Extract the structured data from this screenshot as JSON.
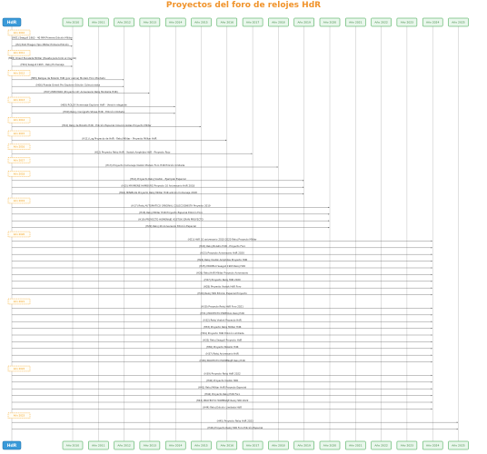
{
  "title": "Proyectos del foro de relojes HdR",
  "actor": {
    "label": "HdR"
  },
  "participants": [
    {
      "label": "Año 2010"
    },
    {
      "label": "Año 2011"
    },
    {
      "label": "Año 2012"
    },
    {
      "label": "Año 2013"
    },
    {
      "label": "Año 2014"
    },
    {
      "label": "Año 2015"
    },
    {
      "label": "Año 2016"
    },
    {
      "label": "Año 2017"
    },
    {
      "label": "Año 2018"
    },
    {
      "label": "Año 2019"
    },
    {
      "label": "Año 2020"
    },
    {
      "label": "Año 2021"
    },
    {
      "label": "Año 2022"
    },
    {
      "label": "Año 2023"
    },
    {
      "label": "Año 2024"
    },
    {
      "label": "Año 2025"
    }
  ],
  "colors": {
    "title": "#f0932b",
    "actor_fill": "#3a9ad9",
    "participant_border": "#2e9e3e",
    "participant_fill": "#e9f7ec",
    "lifeline": "#b0b0b0",
    "note": "#f39c12",
    "arrow": "#555555"
  },
  "groups": [
    {
      "note": "Año 2010",
      "messages": [
        {
          "to": 0,
          "text": "(H01) Seagull 1963 - 40 MM Primera Edición Militar"
        },
        {
          "to": 0,
          "text": "(H2) Pilot Fliegen Tipo Militar Primera Edición"
        }
      ]
    },
    {
      "note": "Año 2011",
      "messages": [
        {
          "to": 0,
          "text": "(H03) Orient Escalada Militar (Puesta para todo el mundo)"
        },
        {
          "to": 0,
          "text": "(H04) Seagull 1963 - Reloj Homenaje"
        }
      ]
    },
    {
      "note": "Año 2012",
      "messages": [
        {
          "to": 2,
          "text": "(H05) Relojes de Bolsillo HdR (por varios) Modelo Foro Montado"
        },
        {
          "to": 2,
          "text": "(H06) Puesta Orient Pro Explorer Edición Coleccionista"
        },
        {
          "to": 3,
          "text": "(H07) PRE-FARO (Proyecto 10º Aniversario Reloj Montaña HdR)"
        }
      ]
    },
    {
      "note": "Año 2013",
      "messages": [
        {
          "to": 4,
          "text": "(H08) ROLEX Homenaje Explorer HdR - Versión elegante"
        },
        {
          "to": 4,
          "text": "(H09) Reloj cronógrafo Stowa HdR - Edición limitada"
        }
      ]
    },
    {
      "note": "Año 2014",
      "messages": [
        {
          "to": 5,
          "text": "(H10) Reloj de Bolsillo HdR - Edición Especial Coleccionistas Proyecto Militar"
        }
      ]
    },
    {
      "note": "Año 2015",
      "messages": [
        {
          "to": 6,
          "text": "(H11) Lug Proyecto de HdR - Reloj Militar - Proyecto Militar HdR"
        }
      ]
    },
    {
      "note": "Año 2016",
      "messages": [
        {
          "to": 7,
          "text": "(H12) Proyecto Reloj HdR - Vostok Amphibia HdR - Proyecto Rojo"
        }
      ]
    },
    {
      "note": "Año 2017",
      "messages": [
        {
          "to": 8,
          "text": "(H13) Proyecto homenaje Vostok Modelo Foro HdR Edición limitada"
        }
      ]
    },
    {
      "note": "Año 2018",
      "messages": [
        {
          "to": 9,
          "text": "(H14) Proyecto Reloj Vostok - Ejemplar Especial"
        },
        {
          "to": 9,
          "text": "(H15) MAYMENE HAMBURG Proyecto 10 Aniversario HdR 2018"
        },
        {
          "to": 9,
          "text": "(H16) MINIPLAS Proyecto Reloj Militar HdR edición homenaje 2018"
        }
      ]
    },
    {
      "note": "Año 2019",
      "messages": [
        {
          "to": 10,
          "text": "(H17) Reloj AUTOMATICO ORIGINAL COLECCIONISTA Proyecto 2019"
        },
        {
          "to": 10,
          "text": "(H18) Reloj Militar HdR Proyecto Especial Edición Foro"
        },
        {
          "to": 10,
          "text": "(H19) PROYECTO HOMENAJE VOSTOK GRAN PROYECTO"
        },
        {
          "to": 10,
          "text": "(H20) Reloj 40 Aniversario Edición Especial"
        }
      ]
    },
    {
      "note": "Año 2020",
      "messages": [
        {
          "to": 14,
          "text": "(H21) HdR 10 aniversario 2010-2020 Reloj Proyecto Militar"
        },
        {
          "to": 14,
          "text": "(H22) Reloj Bolsillo HdR - Proyecto Foro"
        },
        {
          "to": 14,
          "text": "(H23) Proyecto Aniversario HdR 2020"
        },
        {
          "to": 14,
          "text": "(H24) Reloj Vostok Amphibia Proyecto HdR"
        },
        {
          "to": 14,
          "text": "(H25) MODELO Seagull 1963 Reloj HdR"
        },
        {
          "to": 14,
          "text": "(H26) Reloj HdR Militar Proyecto Aniversario"
        },
        {
          "to": 14,
          "text": "(H27) Proyecto Reloj HdR 2020"
        },
        {
          "to": 14,
          "text": "(H28) Proyecto Vostok HdR Foro"
        },
        {
          "to": 14,
          "text": "(H29) Reloj HdR Edición Especial Proyecto"
        }
      ]
    },
    {
      "note": "Año 2021",
      "messages": [
        {
          "to": 14,
          "text": "(H30) Proyecto Reloj HdR Foro 2021"
        },
        {
          "to": 14,
          "text": "(H31) PROYECTO ESPECIAL Reloj HdR"
        },
        {
          "to": 14,
          "text": "(H32) Reloj Vostok Proyecto HdR"
        },
        {
          "to": 14,
          "text": "(H33) Proyecto Reloj Militar HdR"
        },
        {
          "to": 14,
          "text": "(H34) Proyecto HdR Edición Limitada"
        },
        {
          "to": 14,
          "text": "(H35) Reloj Seagull Proyecto HdR"
        },
        {
          "to": 14,
          "text": "(H36) Proyecto Bolsillo HdR"
        },
        {
          "to": 14,
          "text": "(H37) Reloj Aniversario HdR"
        },
        {
          "to": 14,
          "text": "(H38) PROYECTO HOMENAJE Reloj HdR"
        }
      ]
    },
    {
      "note": "Año 2022",
      "messages": [
        {
          "to": 14,
          "text": "(H39) Proyecto Reloj HdR 2022"
        },
        {
          "to": 14,
          "text": "(H40) Proyecto Vostok HdR"
        },
        {
          "to": 14,
          "text": "(H41) Reloj Militar HdR Proyecto Especial"
        },
        {
          "to": 14,
          "text": "(H42) Proyecto Reloj HdR Foro"
        },
        {
          "to": 14,
          "text": "(H43) PROYECTO HOMENAJE Reloj HdR 2022"
        },
        {
          "to": 14,
          "text": "(H44) Reloj Edición Limitada HdR"
        }
      ]
    },
    {
      "note": "Año 2023",
      "messages": [
        {
          "to": 15,
          "text": "(H45) Proyecto Reloj HdR 2023"
        },
        {
          "to": 15,
          "text": "(H46) Proyecto Reloj HdR Foro Edición Especial"
        }
      ]
    }
  ]
}
